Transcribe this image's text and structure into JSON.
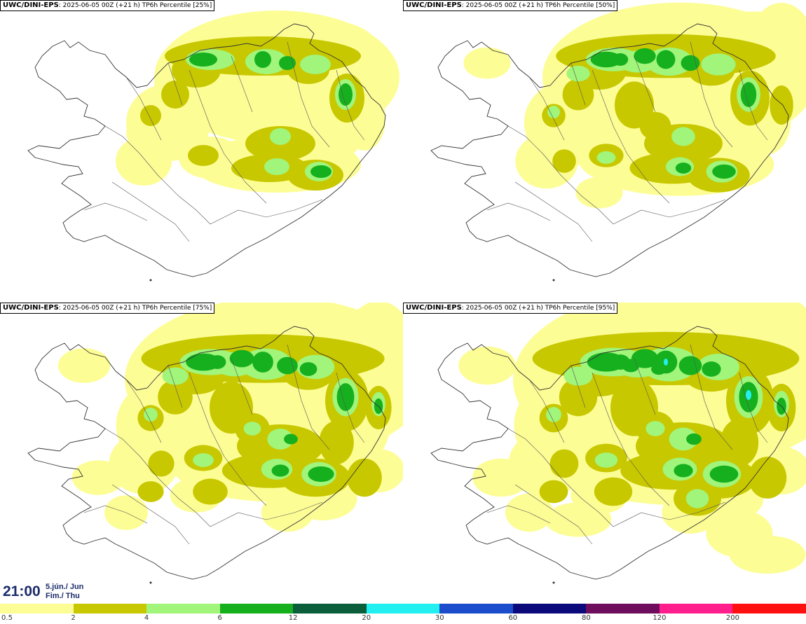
{
  "panels": [
    {
      "source": "UWC/DINI-EPS",
      "title": ": 2025-06-05 00Z (+21 h) TP6h Percentile [25%]",
      "level": 0
    },
    {
      "source": "UWC/DINI-EPS",
      "title": ": 2025-06-05 00Z (+21 h) TP6h Percentile [50%]",
      "level": 1
    },
    {
      "source": "UWC/DINI-EPS",
      "title": ": 2025-06-05 00Z (+21 h) TP6h Percentile [75%]",
      "level": 2
    },
    {
      "source": "UWC/DINI-EPS",
      "title": ": 2025-06-05 00Z (+21 h) TP6h Percentile [95%]",
      "level": 3
    }
  ],
  "time": {
    "hour": "21:00",
    "date_line1": "5.jún./ Jun",
    "date_line2": "Fim./ Thu"
  },
  "legend": {
    "colors": [
      "#fdfd96",
      "#c8c800",
      "#a0f57a",
      "#16b01f",
      "#0a5e3a",
      "#22f0f0",
      "#1a4ccc",
      "#0c0a7a",
      "#6e0c5e",
      "#ff1e8c",
      "#ff1010"
    ],
    "labels": [
      "0.5",
      "2",
      "4",
      "6",
      "12",
      "20",
      "30",
      "60",
      "80",
      "120",
      "200"
    ]
  }
}
